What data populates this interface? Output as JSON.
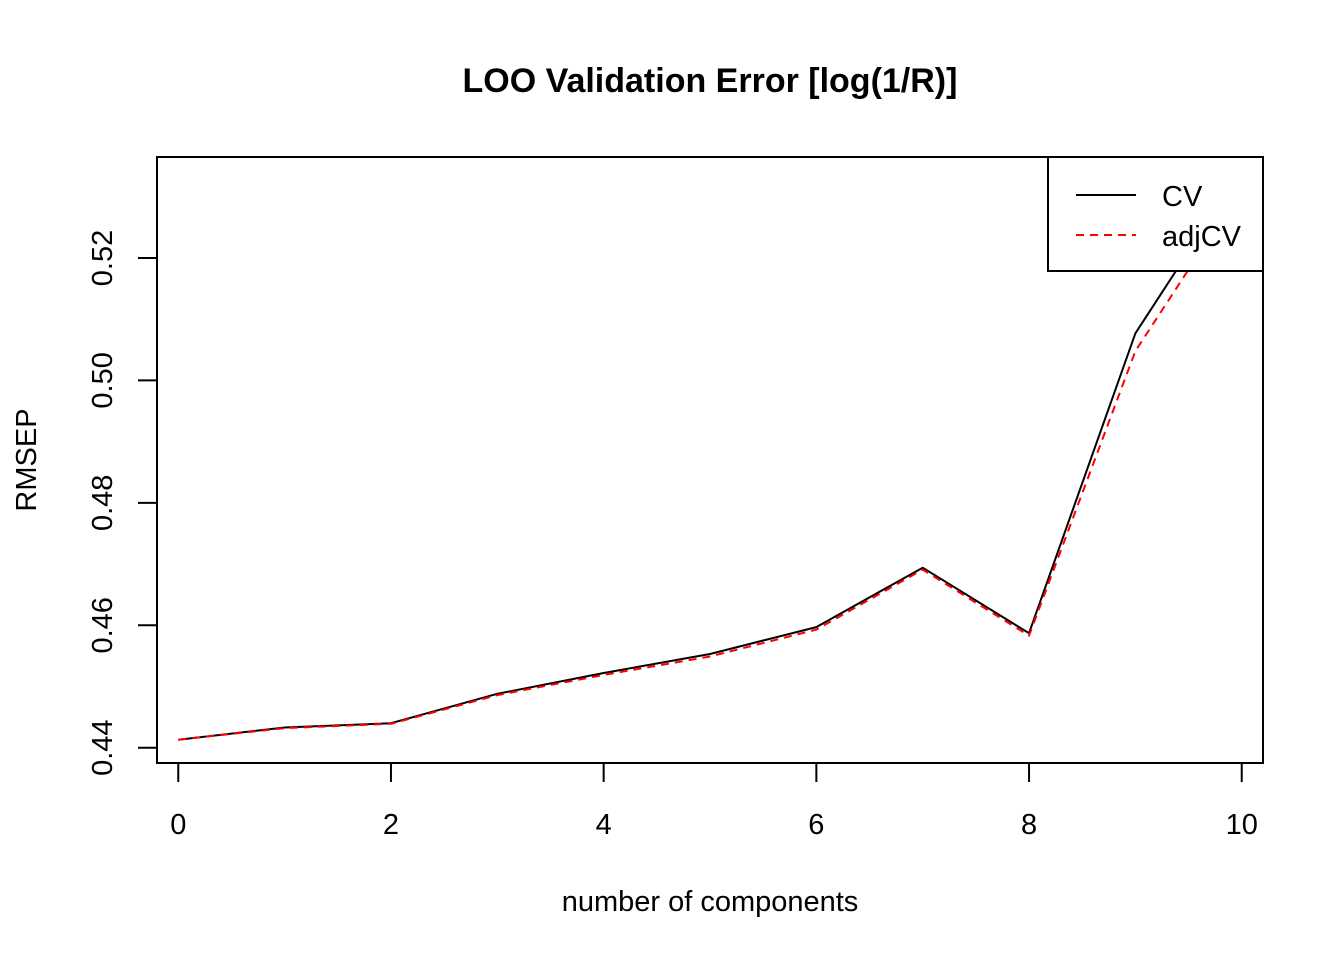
{
  "chart_data": {
    "type": "line",
    "title": "LOO Validation Error [log(1/R)]",
    "xlabel": "number of components",
    "ylabel": "RMSEP",
    "x": [
      0,
      1,
      2,
      3,
      4,
      5,
      6,
      7,
      8,
      9,
      10
    ],
    "xlim": [
      -0.2,
      10.2
    ],
    "ylim": [
      0.4375,
      0.5365
    ],
    "xticks": [
      0,
      2,
      4,
      6,
      8,
      10
    ],
    "yticks": [
      0.44,
      0.46,
      0.48,
      0.5,
      0.52
    ],
    "xtick_labels": [
      "0",
      "2",
      "4",
      "6",
      "8",
      "10"
    ],
    "ytick_labels": [
      "0.44",
      "0.46",
      "0.48",
      "0.50",
      "0.52"
    ],
    "grid": false,
    "legend_position": "top-right",
    "series": [
      {
        "name": "CV",
        "color": "#000000",
        "dash": "solid",
        "values": [
          0.4413,
          0.4433,
          0.444,
          0.4488,
          0.4522,
          0.4553,
          0.4597,
          0.4694,
          0.4587,
          0.5077,
          0.5344
        ]
      },
      {
        "name": "adjCV",
        "color": "#ff0000",
        "dash": "dashed",
        "values": [
          0.4413,
          0.4432,
          0.4439,
          0.4486,
          0.4519,
          0.4549,
          0.4593,
          0.4691,
          0.4583,
          0.5048,
          0.5314
        ]
      }
    ]
  }
}
